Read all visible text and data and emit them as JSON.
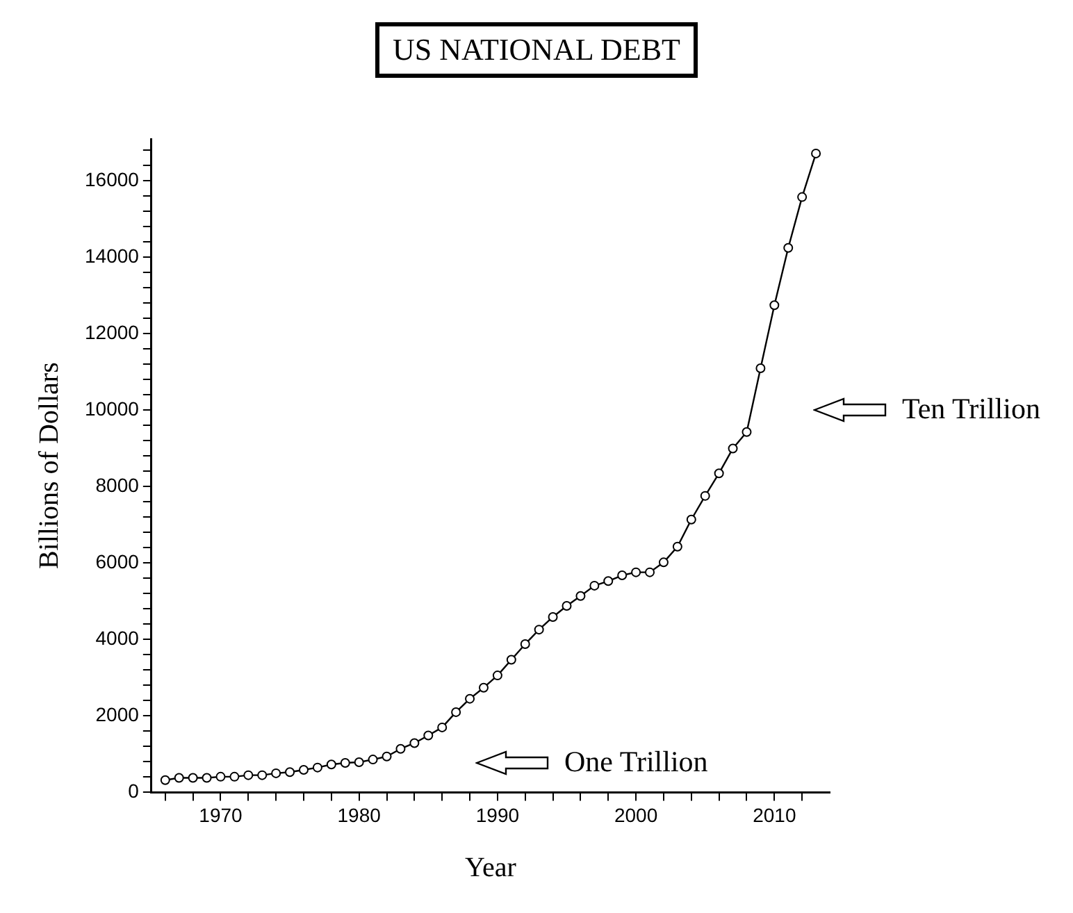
{
  "chart_data": {
    "type": "line",
    "title": "US NATIONAL DEBT",
    "xlabel": "Year",
    "ylabel": "Billions of Dollars",
    "x": [
      1966,
      1967,
      1968,
      1969,
      1970,
      1971,
      1972,
      1973,
      1974,
      1975,
      1976,
      1977,
      1978,
      1979,
      1980,
      1981,
      1982,
      1983,
      1984,
      1985,
      1986,
      1987,
      1988,
      1989,
      1990,
      1991,
      1992,
      1993,
      1994,
      1995,
      1996,
      1997,
      1998,
      1999,
      2000,
      2001,
      2002,
      2003,
      2004,
      2005,
      2006,
      2007,
      2008,
      2009,
      2010,
      2011,
      2012,
      2013
    ],
    "series": [
      {
        "color": "#000000",
        "values": [
          320,
          380,
          380,
          380,
          410,
          410,
          450,
          450,
          500,
          530,
          590,
          650,
          730,
          770,
          790,
          860,
          940,
          1140,
          1290,
          1490,
          1700,
          2100,
          2450,
          2740,
          3060,
          3470,
          3880,
          4260,
          4590,
          4880,
          5140,
          5410,
          5530,
          5680,
          5760,
          5760,
          6020,
          6430,
          7140,
          7760,
          8350,
          9000,
          9430,
          11100,
          12750,
          14250,
          15580,
          16720
        ]
      }
    ],
    "xlim": [
      1965,
      2014
    ],
    "xticks": [
      {
        "value": 1966,
        "label": null
      },
      {
        "value": 1968,
        "label": null
      },
      1970,
      {
        "value": 1972,
        "label": null
      },
      {
        "value": 1974,
        "label": null
      },
      {
        "value": 1976,
        "label": null
      },
      {
        "value": 1978,
        "label": null
      },
      1980,
      {
        "value": 1982,
        "label": null
      },
      {
        "value": 1984,
        "label": null
      },
      {
        "value": 1986,
        "label": null
      },
      {
        "value": 1988,
        "label": null
      },
      1990,
      {
        "value": 1992,
        "label": null
      },
      {
        "value": 1994,
        "label": null
      },
      {
        "value": 1996,
        "label": null
      },
      {
        "value": 1998,
        "label": null
      },
      2000,
      {
        "value": 2002,
        "label": null
      },
      {
        "value": 2004,
        "label": null
      },
      {
        "value": 2006,
        "label": null
      },
      {
        "value": 2008,
        "label": null
      },
      2010,
      {
        "value": 2012,
        "label": null
      }
    ],
    "ylim": [
      0,
      17100
    ],
    "yticks": [
      0,
      {
        "value": 400,
        "label": null
      },
      {
        "value": 800,
        "label": null
      },
      {
        "value": 1200,
        "label": null
      },
      {
        "value": 1600,
        "label": null
      },
      2000,
      {
        "value": 2400,
        "label": null
      },
      {
        "value": 2800,
        "label": null
      },
      {
        "value": 3200,
        "label": null
      },
      {
        "value": 3600,
        "label": null
      },
      4000,
      {
        "value": 4400,
        "label": null
      },
      {
        "value": 4800,
        "label": null
      },
      {
        "value": 5200,
        "label": null
      },
      {
        "value": 5600,
        "label": null
      },
      6000,
      {
        "value": 6400,
        "label": null
      },
      {
        "value": 6800,
        "label": null
      },
      {
        "value": 7200,
        "label": null
      },
      {
        "value": 7600,
        "label": null
      },
      8000,
      {
        "value": 8400,
        "label": null
      },
      {
        "value": 8800,
        "label": null
      },
      {
        "value": 9200,
        "label": null
      },
      {
        "value": 9600,
        "label": null
      },
      10000,
      {
        "value": 10400,
        "label": null
      },
      {
        "value": 10800,
        "label": null
      },
      {
        "value": 11200,
        "label": null
      },
      {
        "value": 11600,
        "label": null
      },
      12000,
      {
        "value": 12400,
        "label": null
      },
      {
        "value": 12800,
        "label": null
      },
      {
        "value": 13200,
        "label": null
      },
      {
        "value": 13600,
        "label": null
      },
      14000,
      {
        "value": 14400,
        "label": null
      },
      {
        "value": 14800,
        "label": null
      },
      {
        "value": 15200,
        "label": null
      },
      {
        "value": 15600,
        "label": null
      },
      16000,
      {
        "value": 16400,
        "label": null
      },
      {
        "value": 16800,
        "label": null
      }
    ],
    "grid": false,
    "legend": false,
    "marker": "circle",
    "line_style": "solid",
    "annotations": [
      "Ten Trillion",
      "One Trillion"
    ]
  }
}
